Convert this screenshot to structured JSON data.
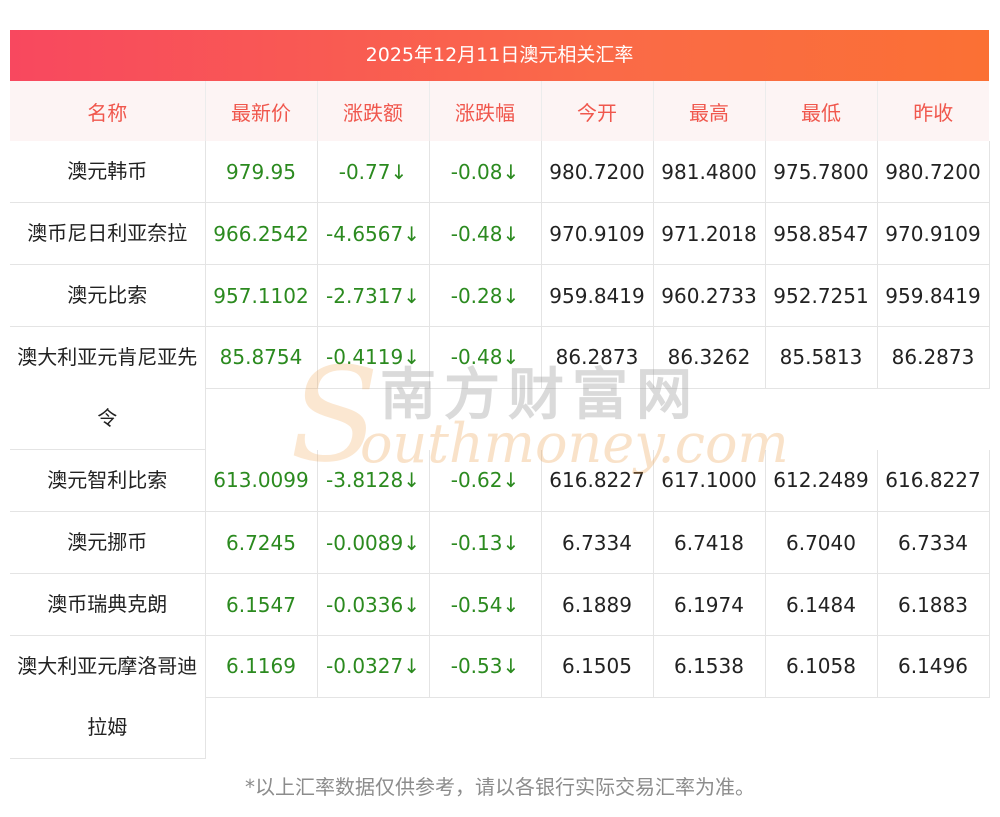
{
  "title": "2025年12月11日澳元相关汇率",
  "headers": [
    "名称",
    "最新价",
    "涨跌额",
    "涨跌幅",
    "今开",
    "最高",
    "最低",
    "昨收"
  ],
  "rows": [
    {
      "name": "澳元韩币",
      "latest": "979.95",
      "change": "-0.77↓",
      "pct": "-0.08↓",
      "open": "980.7200",
      "high": "981.4800",
      "low": "975.7800",
      "prev": "980.7200"
    },
    {
      "name": "澳币尼日利亚奈拉",
      "latest": "966.2542",
      "change": "-4.6567↓",
      "pct": "-0.48↓",
      "open": "970.9109",
      "high": "971.2018",
      "low": "958.8547",
      "prev": "970.9109"
    },
    {
      "name": "澳元比索",
      "latest": "957.1102",
      "change": "-2.7317↓",
      "pct": "-0.28↓",
      "open": "959.8419",
      "high": "960.2733",
      "low": "952.7251",
      "prev": "959.8419"
    },
    {
      "name": "澳大利亚元肯尼亚先令",
      "latest": "85.8754",
      "change": "-0.4119↓",
      "pct": "-0.48↓",
      "open": "86.2873",
      "high": "86.3262",
      "low": "85.5813",
      "prev": "86.2873"
    },
    {
      "name": "澳元智利比索",
      "latest": "613.0099",
      "change": "-3.8128↓",
      "pct": "-0.62↓",
      "open": "616.8227",
      "high": "617.1000",
      "low": "612.2489",
      "prev": "616.8227"
    },
    {
      "name": "澳元挪币",
      "latest": "6.7245",
      "change": "-0.0089↓",
      "pct": "-0.13↓",
      "open": "6.7334",
      "high": "6.7418",
      "low": "6.7040",
      "prev": "6.7334"
    },
    {
      "name": "澳币瑞典克朗",
      "latest": "6.1547",
      "change": "-0.0336↓",
      "pct": "-0.54↓",
      "open": "6.1889",
      "high": "6.1974",
      "low": "6.1484",
      "prev": "6.1883"
    },
    {
      "name": "澳大利亚元摩洛哥迪拉姆",
      "latest": "6.1169",
      "change": "-0.0327↓",
      "pct": "-0.53↓",
      "open": "6.1505",
      "high": "6.1538",
      "low": "6.1058",
      "prev": "6.1496"
    }
  ],
  "note": "*以上汇率数据仅供参考，请以各银行实际交易汇率为准。",
  "watermark": {
    "cn": "南方财富网",
    "en": "outhmoney.com",
    "s": "S"
  },
  "colors": {
    "title_gradient_start": "#f8485f",
    "title_gradient_end": "#fb7034",
    "header_text": "#f0574d",
    "change_text": "#2b8a1f"
  }
}
